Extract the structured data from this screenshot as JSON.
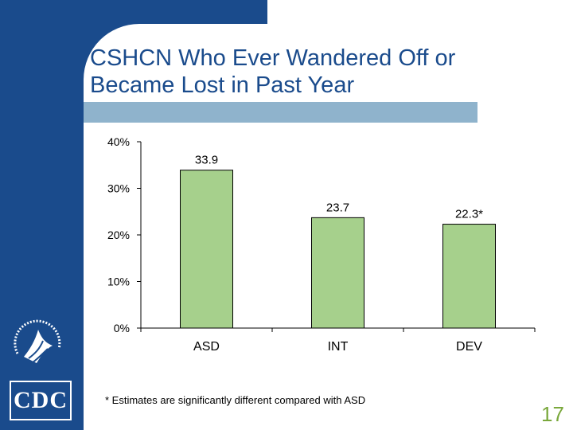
{
  "slide": {
    "title_line1": "CSHCN Who Ever Wandered Off or",
    "title_line2": "Became Lost in Past Year",
    "footnote": "* Estimates are significantly different compared with ASD",
    "page_number": "17",
    "logo_text": "CDC"
  },
  "colors": {
    "brand_blue": "#1a4b8c",
    "title_bar": "#8fb3cc",
    "bar_fill": "#a6d08c",
    "bar_stroke": "#000000",
    "page_number": "#7aa83c"
  },
  "chart_data": {
    "type": "bar",
    "title": "CSHCN Who Ever Wandered Off or Became Lost in Past Year",
    "xlabel": "",
    "ylabel": "",
    "categories": [
      "ASD",
      "INT",
      "DEV"
    ],
    "values": [
      33.9,
      23.7,
      22.3
    ],
    "data_labels": [
      "33.9",
      "23.7",
      "22.3*"
    ],
    "ylim": [
      0,
      40
    ],
    "yticks": [
      0,
      10,
      20,
      30,
      40
    ],
    "ytick_labels": [
      "0%",
      "10%",
      "20%",
      "30%",
      "40%"
    ],
    "grid": false,
    "legend": "none"
  }
}
